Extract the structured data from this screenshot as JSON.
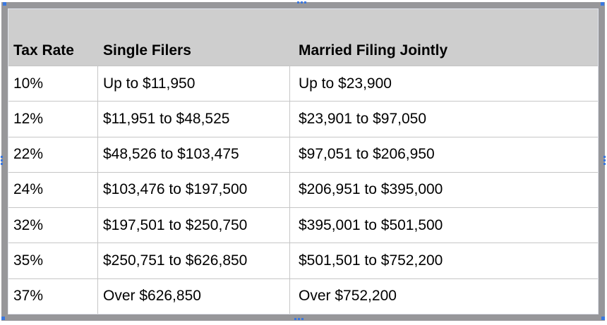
{
  "table": {
    "headers": {
      "rate": "Tax Rate",
      "single": "Single Filers",
      "married": "Married Filing Jointly"
    },
    "rows": [
      {
        "rate": "10%",
        "single": "Up to $11,950",
        "married": "Up to $23,900"
      },
      {
        "rate": "12%",
        "single": "$11,951 to $48,525",
        "married": "$23,901 to $97,050"
      },
      {
        "rate": "22%",
        "single": "$48,526 to $103,475",
        "married": "$97,051 to $206,950"
      },
      {
        "rate": "24%",
        "single": "$103,476 to $197,500",
        "married": "$206,951 to $395,000"
      },
      {
        "rate": "32%",
        "single": "$197,501 to $250,750",
        "married": "$395,001 to $501,500"
      },
      {
        "rate": "35%",
        "single": "$250,751 to $626,850",
        "married": "$501,501 to $752,200"
      },
      {
        "rate": "37%",
        "single": "Over $626,850",
        "married": "Over $752,200"
      }
    ]
  },
  "selection": {
    "handle_color": "#3b78e0",
    "handles": [
      "top-left-corner",
      "top-center",
      "top-right-corner",
      "left-center",
      "right-center",
      "bottom-left-corner",
      "bottom-center",
      "bottom-right-corner"
    ]
  },
  "colors": {
    "table_border": "#97979a",
    "header_bg": "#cecece",
    "grid_line": "#c6c6c6",
    "body_bg": "#ffffff",
    "text": "#000000"
  }
}
